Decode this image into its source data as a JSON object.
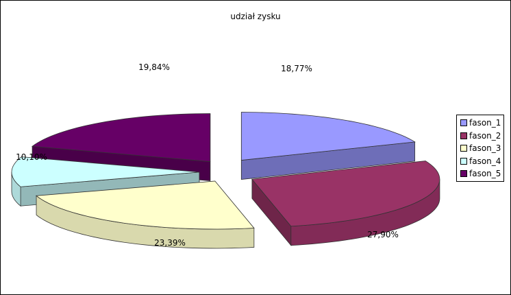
{
  "chart_data": {
    "type": "pie",
    "title": "udział zysku",
    "categories": [
      "fason_1",
      "fason_2",
      "fason_3",
      "fason_4",
      "fason_5"
    ],
    "values": [
      18.77,
      27.9,
      23.39,
      10.1,
      19.84
    ],
    "value_labels": [
      "18,77%",
      "27,90%",
      "23,39%",
      "10,10%",
      "19,84%"
    ],
    "legend": "right",
    "exploded": true,
    "three_d": true
  },
  "colors": {
    "fason_1": "#9999ff",
    "fason_2": "#993366",
    "fason_3": "#ffffcc",
    "fason_4": "#ccffff",
    "fason_5": "#660066"
  }
}
